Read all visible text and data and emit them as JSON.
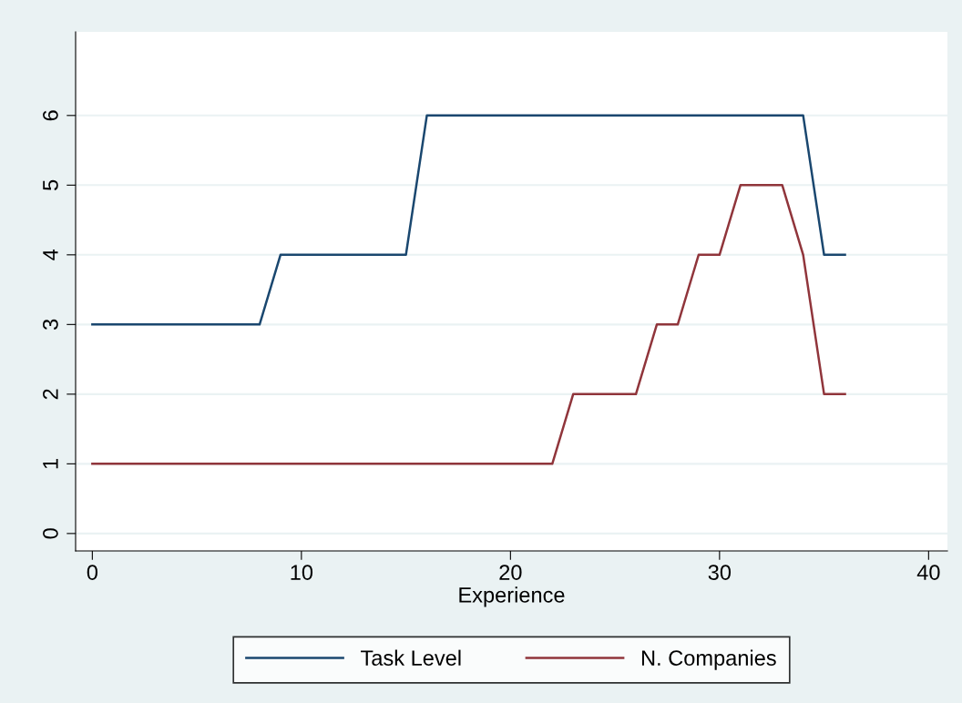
{
  "chart_data": {
    "type": "line",
    "xlabel": "Experience",
    "series": [
      {
        "name": "Task Level",
        "color": "#1a476f",
        "x": [
          0,
          8,
          9,
          15,
          16,
          34,
          35,
          36
        ],
        "values": [
          3,
          3,
          4,
          4,
          6,
          6,
          4,
          4
        ]
      },
      {
        "name": "N. Companies",
        "color": "#90353b",
        "x": [
          0,
          22,
          23,
          26,
          27,
          28,
          29,
          30,
          31,
          33,
          34,
          35,
          36
        ],
        "values": [
          1,
          1,
          2,
          2,
          3,
          3,
          4,
          4,
          5,
          5,
          4,
          2,
          2
        ]
      }
    ],
    "xlim": [
      -0.8,
      40.9
    ],
    "ylim": [
      -0.25,
      7.2
    ],
    "xticks": [
      0,
      10,
      20,
      30,
      40
    ],
    "yticks": [
      0,
      1,
      2,
      3,
      4,
      5,
      6
    ],
    "grid": "y",
    "legend": "bottom",
    "marker": "none",
    "line_style": "solid"
  }
}
